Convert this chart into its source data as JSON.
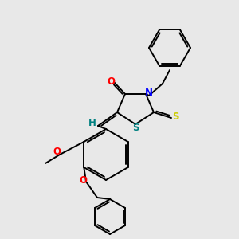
{
  "bg_color": "#e8e8e8",
  "bond_color": "#000000",
  "atom_colors": {
    "O": "#ff0000",
    "N": "#0000ff",
    "S_ring": "#008080",
    "S_thioxo": "#cccc00",
    "H": "#008080",
    "C": "#000000"
  },
  "figsize": [
    3.0,
    3.0
  ],
  "dpi": 100
}
